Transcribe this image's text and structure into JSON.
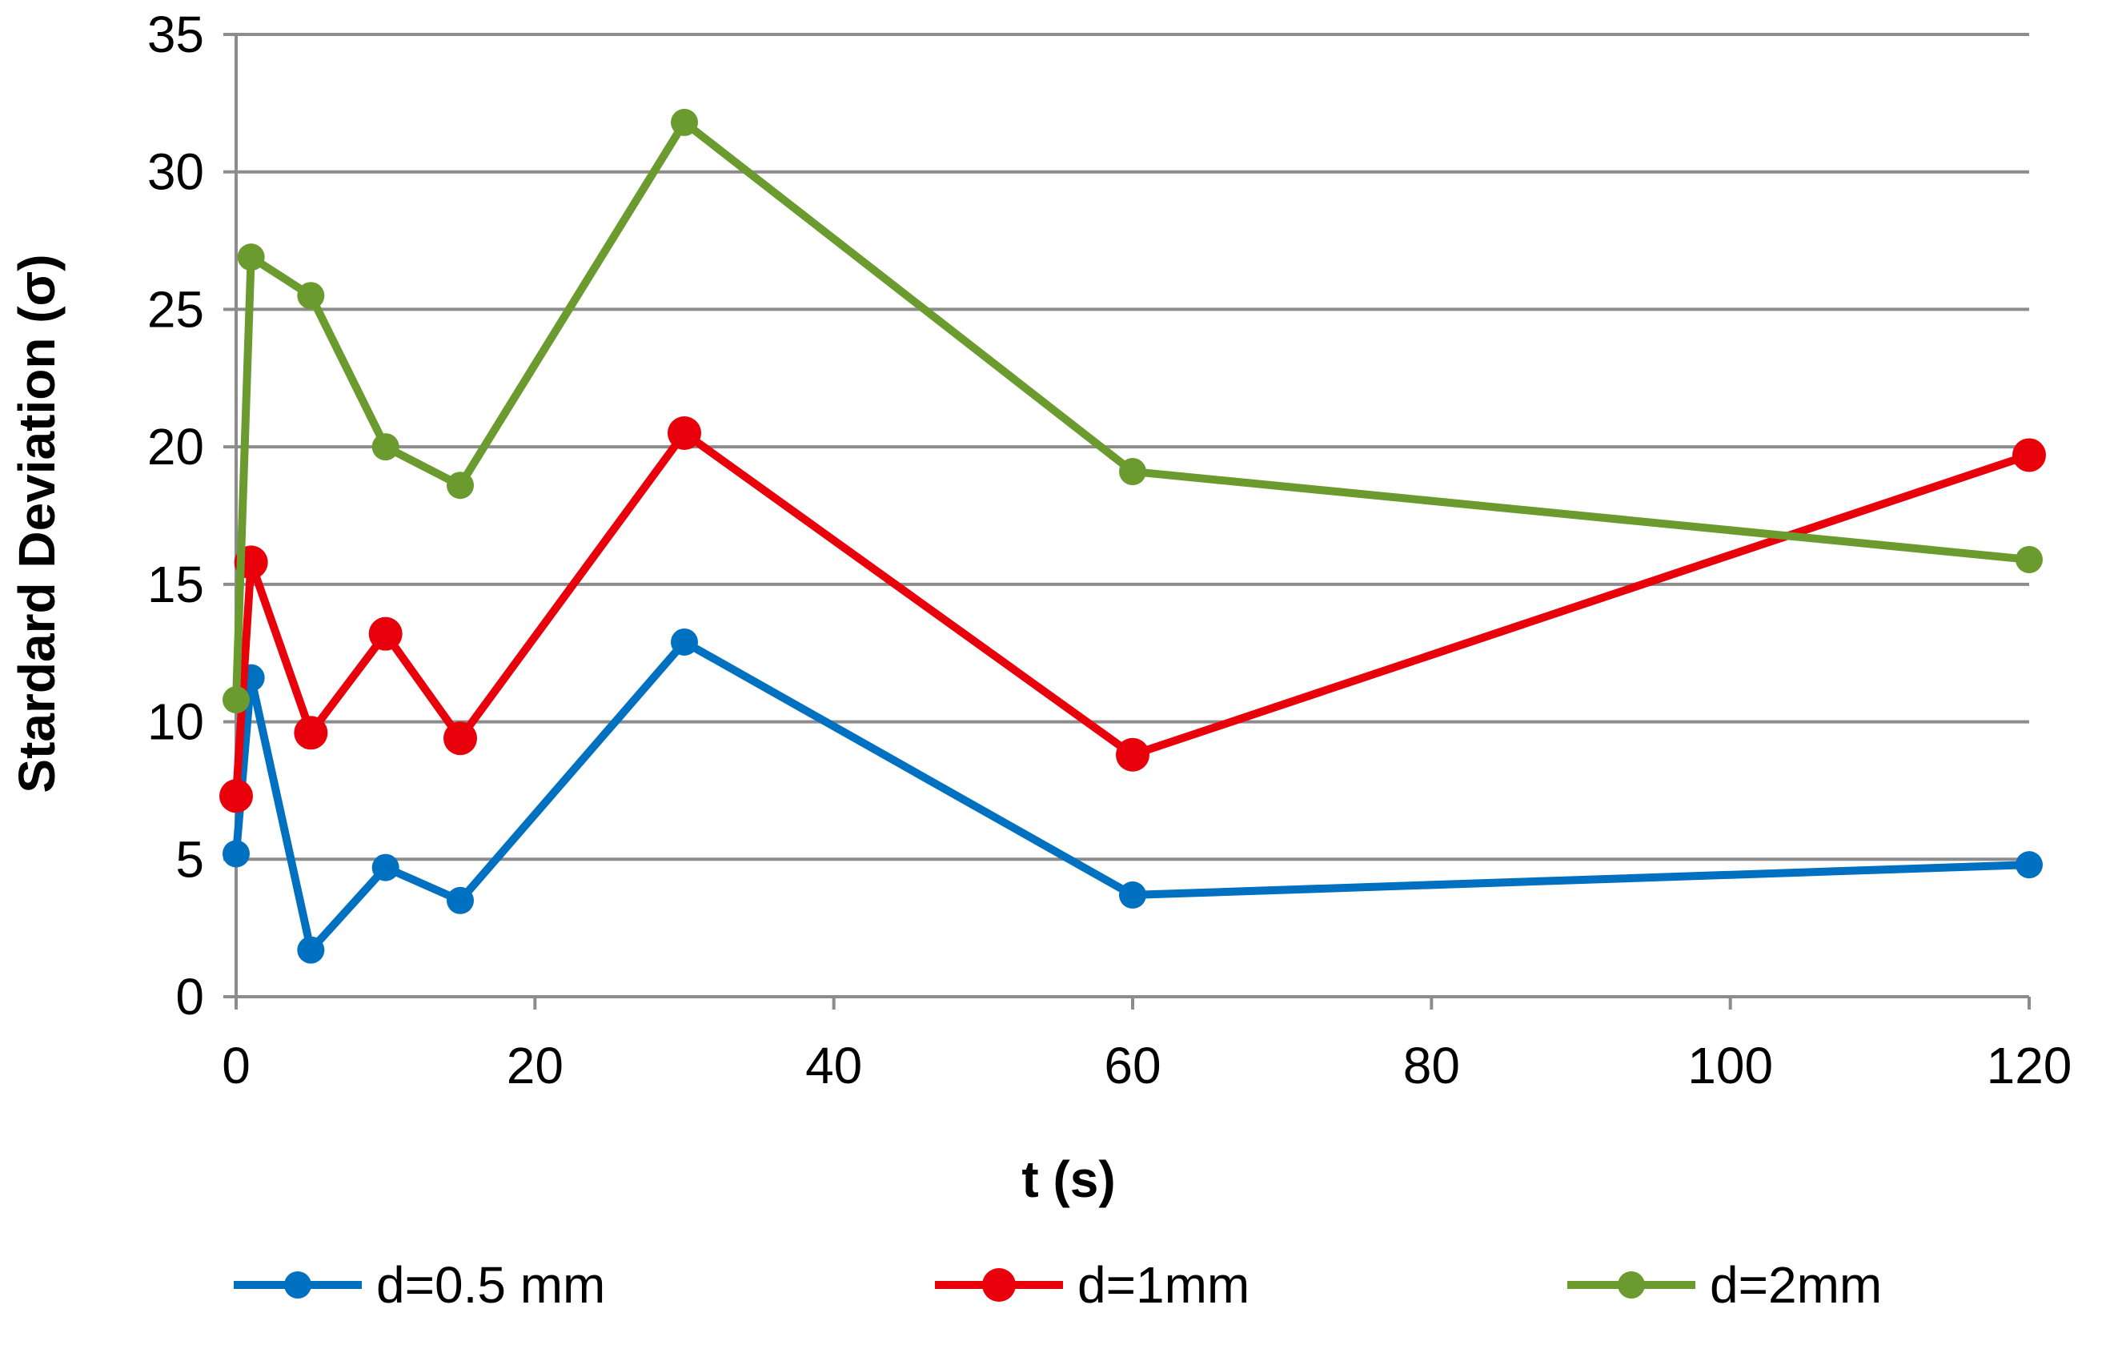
{
  "chart_data": {
    "type": "line",
    "title": "",
    "xlabel": "t (s)",
    "ylabel": "Stardard Deviation (σ)",
    "xlim": [
      0,
      120
    ],
    "ylim": [
      0,
      35
    ],
    "x_ticks": [
      0,
      20,
      40,
      60,
      80,
      100,
      120
    ],
    "y_ticks": [
      0,
      5,
      10,
      15,
      20,
      25,
      30,
      35
    ],
    "grid": "horizontal",
    "legend_position": "bottom",
    "series": [
      {
        "name": "d=0.5 mm",
        "color": "#0070c0",
        "marker_size": "small",
        "x": [
          0,
          1,
          5,
          10,
          15,
          30,
          60,
          120
        ],
        "y": [
          5.2,
          11.6,
          1.7,
          4.7,
          3.5,
          12.9,
          3.7,
          4.8
        ]
      },
      {
        "name": "d=1mm",
        "color": "#e8000b",
        "marker_size": "large",
        "x": [
          0,
          1,
          5,
          10,
          15,
          30,
          60,
          120
        ],
        "y": [
          7.3,
          15.8,
          9.6,
          13.2,
          9.4,
          20.5,
          8.8,
          19.7
        ]
      },
      {
        "name": "d=2mm",
        "color": "#6b9a2e",
        "marker_size": "small",
        "x": [
          0,
          1,
          5,
          10,
          15,
          30,
          60,
          120
        ],
        "y": [
          10.8,
          26.9,
          25.5,
          20.0,
          18.6,
          31.8,
          19.1,
          15.9
        ]
      }
    ]
  }
}
